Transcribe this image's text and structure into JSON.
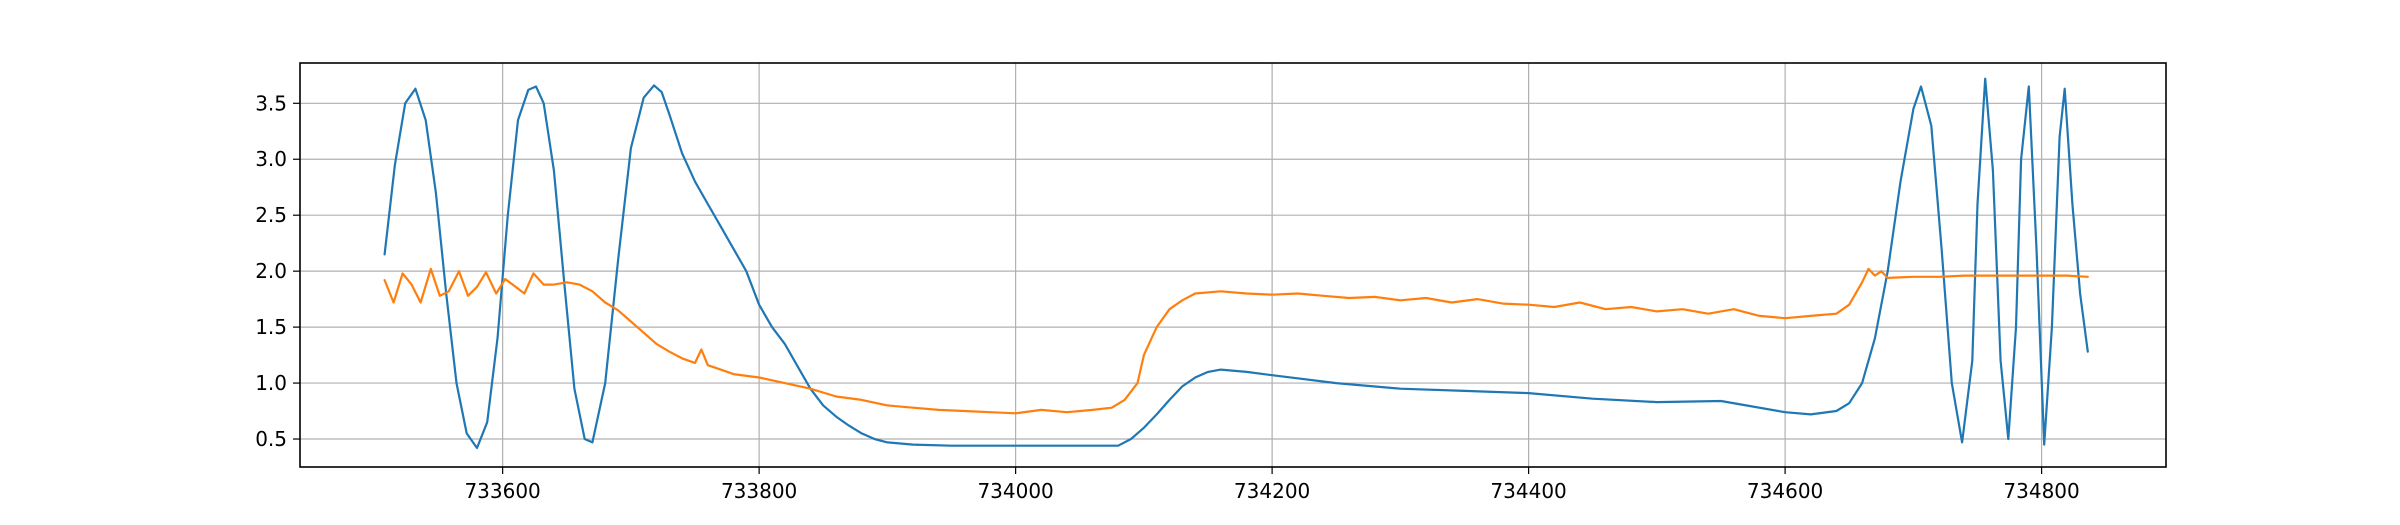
{
  "chart_data": {
    "type": "line",
    "title": "",
    "xlabel": "",
    "ylabel": "",
    "xlim": [
      733442,
      734897
    ],
    "ylim": [
      0.25,
      3.86
    ],
    "xticks": [
      733600,
      733800,
      734000,
      734200,
      734400,
      734600,
      734800
    ],
    "yticks": [
      0.5,
      1.0,
      1.5,
      2.0,
      2.5,
      3.0,
      3.5
    ],
    "grid": true,
    "legend": "none",
    "series": [
      {
        "color": "#1f77b4",
        "x": [
          733508,
          733516,
          733524,
          733532,
          733540,
          733548,
          733556,
          733564,
          733572,
          733580,
          733588,
          733596,
          733604,
          733612,
          733620,
          733626,
          733632,
          733640,
          733648,
          733656,
          733664,
          733670,
          733680,
          733690,
          733700,
          733710,
          733718,
          733724,
          733730,
          733740,
          733750,
          733760,
          733770,
          733780,
          733790,
          733800,
          733810,
          733820,
          733830,
          733840,
          733850,
          733860,
          733870,
          733880,
          733890,
          733900,
          733920,
          733950,
          734000,
          734050,
          734080,
          734090,
          734100,
          734110,
          734120,
          734130,
          734140,
          734150,
          734160,
          734180,
          734200,
          734250,
          734300,
          734350,
          734400,
          734450,
          734500,
          734550,
          734600,
          734620,
          734640,
          734650,
          734660,
          734670,
          734680,
          734690,
          734700,
          734706,
          734714,
          734722,
          734730,
          734738,
          734746,
          734750,
          734756,
          734762,
          734768,
          734774,
          734780,
          734784,
          734790,
          734796,
          734802,
          734808,
          734814,
          734818,
          734824,
          734830,
          734836
        ],
        "y": [
          2.15,
          2.95,
          3.5,
          3.63,
          3.35,
          2.7,
          1.8,
          1.0,
          0.55,
          0.42,
          0.65,
          1.4,
          2.5,
          3.35,
          3.62,
          3.65,
          3.5,
          2.9,
          1.9,
          0.95,
          0.5,
          0.47,
          1.0,
          2.1,
          3.1,
          3.55,
          3.66,
          3.6,
          3.4,
          3.05,
          2.8,
          2.6,
          2.4,
          2.2,
          2.0,
          1.7,
          1.5,
          1.35,
          1.15,
          0.95,
          0.8,
          0.7,
          0.62,
          0.55,
          0.5,
          0.47,
          0.45,
          0.44,
          0.44,
          0.44,
          0.44,
          0.5,
          0.6,
          0.72,
          0.85,
          0.97,
          1.05,
          1.1,
          1.12,
          1.1,
          1.07,
          1.0,
          0.95,
          0.93,
          0.91,
          0.86,
          0.83,
          0.84,
          0.74,
          0.72,
          0.75,
          0.82,
          1.0,
          1.4,
          2.0,
          2.8,
          3.45,
          3.65,
          3.3,
          2.2,
          1.0,
          0.47,
          1.2,
          2.6,
          3.72,
          2.9,
          1.2,
          0.5,
          1.5,
          3.0,
          3.65,
          2.2,
          0.45,
          1.5,
          3.2,
          3.63,
          2.6,
          1.8,
          1.28
        ]
      },
      {
        "color": "#ff7f0e",
        "x": [
          733508,
          733515,
          733522,
          733529,
          733536,
          733544,
          733551,
          733558,
          733566,
          733573,
          733580,
          733587,
          733595,
          733602,
          733610,
          733617,
          733624,
          733632,
          733640,
          733650,
          733660,
          733670,
          733680,
          733690,
          733700,
          733710,
          733720,
          733730,
          733740,
          733750,
          733755,
          733760,
          733770,
          733780,
          733800,
          733820,
          733840,
          733860,
          733880,
          733900,
          733920,
          733940,
          733960,
          733980,
          734000,
          734020,
          734040,
          734060,
          734075,
          734085,
          734095,
          734100,
          734110,
          734120,
          734130,
          734140,
          734160,
          734180,
          734200,
          734220,
          734240,
          734260,
          734280,
          734300,
          734320,
          734340,
          734360,
          734380,
          734400,
          734420,
          734440,
          734460,
          734480,
          734500,
          734520,
          734540,
          734560,
          734580,
          734600,
          734620,
          734640,
          734650,
          734660,
          734665,
          734670,
          734675,
          734680,
          734700,
          734720,
          734740,
          734760,
          734780,
          734800,
          734820,
          734836
        ],
        "y": [
          1.92,
          1.72,
          1.98,
          1.88,
          1.72,
          2.02,
          1.78,
          1.82,
          2.0,
          1.78,
          1.86,
          1.99,
          1.8,
          1.93,
          1.86,
          1.8,
          1.98,
          1.88,
          1.88,
          1.9,
          1.88,
          1.82,
          1.72,
          1.65,
          1.55,
          1.45,
          1.35,
          1.28,
          1.22,
          1.18,
          1.3,
          1.16,
          1.12,
          1.08,
          1.05,
          1.0,
          0.95,
          0.88,
          0.85,
          0.8,
          0.78,
          0.76,
          0.75,
          0.74,
          0.73,
          0.76,
          0.74,
          0.76,
          0.78,
          0.85,
          1.0,
          1.25,
          1.5,
          1.66,
          1.74,
          1.8,
          1.82,
          1.8,
          1.79,
          1.8,
          1.78,
          1.76,
          1.77,
          1.74,
          1.76,
          1.72,
          1.75,
          1.71,
          1.7,
          1.68,
          1.72,
          1.66,
          1.68,
          1.64,
          1.66,
          1.62,
          1.66,
          1.6,
          1.58,
          1.6,
          1.62,
          1.7,
          1.9,
          2.02,
          1.96,
          2.0,
          1.94,
          1.95,
          1.95,
          1.96,
          1.96,
          1.96,
          1.96,
          1.96,
          1.95
        ]
      }
    ]
  }
}
